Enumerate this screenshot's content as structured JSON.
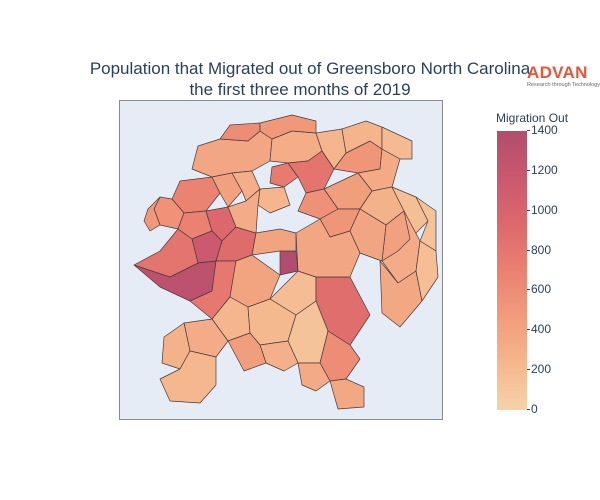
{
  "title": {
    "line1": "Population that Migrated out of Greensboro North Carolina",
    "line2": "the first three months of 2019"
  },
  "logo": {
    "word": "ADVAN",
    "tagline": "Research through Technology",
    "color": "#e8553a"
  },
  "colorbar": {
    "title": "Migration Out",
    "min": 0,
    "max": 1400,
    "ticks": [
      "1400",
      "1200",
      "1000",
      "800",
      "600",
      "400",
      "200",
      "0"
    ],
    "tick_values": [
      1400,
      1200,
      1000,
      800,
      600,
      400,
      200,
      0
    ],
    "colorscale": [
      "#f6d2a9",
      "#f5b78e",
      "#f19c7c",
      "#ea8171",
      "#dd686c",
      "#ca586f",
      "#b14d6e"
    ]
  },
  "chart_data": {
    "type": "heatmap",
    "subtype": "choropleth",
    "region": "Greensboro North Carolina",
    "period": "first three months of 2019",
    "colorbar_title": "Migration Out",
    "value_range": [
      0,
      1400
    ],
    "map_background": "#e5ecf6",
    "tracts": [
      {
        "v": 380
      },
      {
        "v": 320
      },
      {
        "v": 250
      },
      {
        "v": 520
      },
      {
        "v": 760
      },
      {
        "v": 350
      },
      {
        "v": 680
      },
      {
        "v": 420
      },
      {
        "v": 550
      },
      {
        "v": 700
      },
      {
        "v": 300
      },
      {
        "v": 240
      },
      {
        "v": 820
      },
      {
        "v": 450
      },
      {
        "v": 280
      },
      {
        "v": 160
      },
      {
        "v": 330
      },
      {
        "v": 260
      },
      {
        "v": 520
      },
      {
        "v": 950
      },
      {
        "v": 1150
      },
      {
        "v": 900
      },
      {
        "v": 1400
      },
      {
        "v": 400
      },
      {
        "v": 1300
      },
      {
        "v": 780
      },
      {
        "v": 400
      },
      {
        "v": 180
      },
      {
        "v": 880
      },
      {
        "v": 380
      },
      {
        "v": 240
      },
      {
        "v": 220
      },
      {
        "v": 130
      },
      {
        "v": 360
      },
      {
        "v": 330
      },
      {
        "v": 280
      },
      {
        "v": 230
      },
      {
        "v": 600
      },
      {
        "v": 360
      },
      {
        "v": 290
      },
      {
        "v": 450
      },
      {
        "v": 500
      },
      {
        "v": 350
      },
      {
        "v": 600
      },
      {
        "v": 500
      },
      {
        "v": 260
      },
      {
        "v": 210
      },
      {
        "v": 420
      },
      {
        "v": 390
      },
      {
        "v": 130
      },
      {
        "v": 170
      },
      {
        "v": 560
      },
      {
        "v": 820
      },
      {
        "v": 330
      }
    ]
  }
}
